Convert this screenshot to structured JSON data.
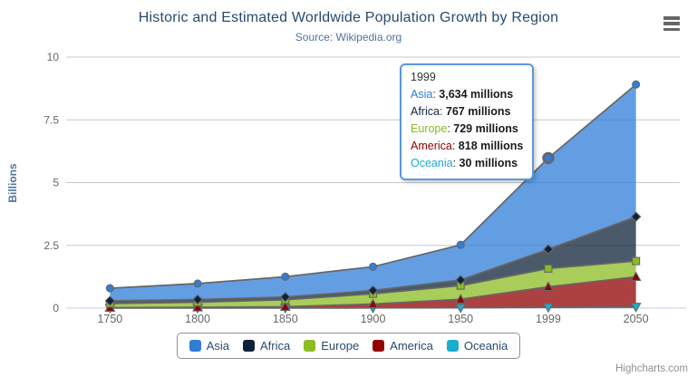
{
  "title": "Historic and Estimated Worldwide Population Growth by Region",
  "subtitle": "Source: Wikipedia.org",
  "credits": "Highcharts.com",
  "tooltip": {
    "header": "1999",
    "unit": "millions",
    "rows": [
      {
        "name": "Asia",
        "value": "3,634"
      },
      {
        "name": "Africa",
        "value": "767"
      },
      {
        "name": "Europe",
        "value": "729"
      },
      {
        "name": "America",
        "value": "818"
      },
      {
        "name": "Oceania",
        "value": "30"
      }
    ]
  },
  "colors": {
    "title": "#274b6d",
    "subtitle": "#4d759e",
    "axis_labels": "#666666",
    "grid": "#c8c8c8",
    "axis_line": "#c0d0e0",
    "legend_border": "#909090",
    "credits": "#909090",
    "series_outline": "#666666"
  },
  "chart_data": {
    "type": "area",
    "stacking": "normal",
    "title": "Historic and Estimated Worldwide Population Growth by Region",
    "subtitle": "Source: Wikipedia.org",
    "categories": [
      "1750",
      "1800",
      "1850",
      "1900",
      "1950",
      "1999",
      "2050"
    ],
    "xlabel": "",
    "ylabel": "Billions",
    "ylim": [
      0,
      10
    ],
    "yticks": [
      0,
      2.5,
      5,
      7.5,
      10
    ],
    "grid": true,
    "legend_position": "bottom",
    "value_unit": "millions",
    "fill_opacity": 0.75,
    "line_color": "#666666",
    "stack_order_bottom_to_top": [
      "Oceania",
      "America",
      "Europe",
      "Africa",
      "Asia"
    ],
    "series": [
      {
        "name": "Asia",
        "color": "#2f7ed8",
        "marker": "circle",
        "values": [
          502,
          635,
          809,
          947,
          1402,
          3634,
          5268
        ]
      },
      {
        "name": "Africa",
        "color": "#0d233a",
        "marker": "diamond",
        "values": [
          106,
          107,
          111,
          133,
          221,
          767,
          1766
        ]
      },
      {
        "name": "Europe",
        "color": "#8bbc21",
        "marker": "square",
        "values": [
          163,
          203,
          276,
          408,
          547,
          729,
          628
        ]
      },
      {
        "name": "America",
        "color": "#910000",
        "marker": "triangle",
        "values": [
          18,
          31,
          54,
          156,
          339,
          818,
          1201
        ]
      },
      {
        "name": "Oceania",
        "color": "#1aadce",
        "marker": "triangle-down",
        "values": [
          2,
          2,
          2,
          6,
          13,
          30,
          46
        ]
      }
    ],
    "hovered_point": {
      "series": "Asia",
      "category": "1999",
      "stacked_total_millions": 5978
    }
  }
}
